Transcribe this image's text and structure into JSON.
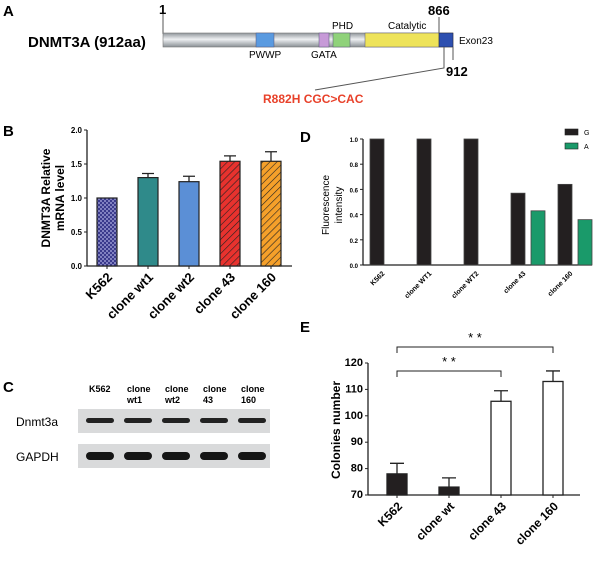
{
  "panel_labels": {
    "a": "A",
    "b": "B",
    "c": "C",
    "d": "D",
    "e": "E"
  },
  "panel_a": {
    "protein": "DNMT3A (912aa)",
    "start": "1",
    "pos866": "866",
    "end": "912",
    "exon": "Exon23",
    "domains": {
      "pwwp": "PWWP",
      "gata": "GATA",
      "phd": "PHD",
      "catalytic": "Catalytic"
    },
    "mutation": "R882H CGC>CAC",
    "mutation_color": "#e8412a"
  },
  "panel_c": {
    "lanes": [
      [
        "K562",
        ""
      ],
      [
        "clone",
        "wt1"
      ],
      [
        "clone",
        "wt2"
      ],
      [
        "clone",
        "43"
      ],
      [
        "clone",
        "160"
      ]
    ],
    "rows": [
      "Dnmt3a",
      "GAPDH"
    ]
  },
  "chart_data": [
    {
      "id": "B",
      "type": "bar",
      "ylabel": [
        "DNMT3A Relative",
        "mRNA level"
      ],
      "ylim": [
        0,
        2
      ],
      "yticks": [
        "0.0",
        "0.5",
        "1.0",
        "1.5",
        "2.0"
      ],
      "categories": [
        "K562",
        "clone wt1",
        "clone wt2",
        "clone 43",
        "clone 160"
      ],
      "values": [
        1.0,
        1.3,
        1.24,
        1.54,
        1.54
      ],
      "errors": [
        0,
        0.06,
        0.08,
        0.08,
        0.14
      ],
      "colors": [
        "#3a3a8c",
        "#2f8a8a",
        "#5b8fd6",
        "#e8322e",
        "#f5a02a"
      ]
    },
    {
      "id": "D",
      "type": "bar",
      "ylabel": [
        "Fluorescence",
        "intensity"
      ],
      "ylim": [
        0,
        1
      ],
      "yticks": [
        "0.0",
        "0.2",
        "0.4",
        "0.6",
        "0.8",
        "1.0"
      ],
      "categories": [
        "K562",
        "clone WT1",
        "clone WT2",
        "clone 43",
        "clone 160"
      ],
      "series": [
        {
          "name": "G",
          "values": [
            1.0,
            1.0,
            1.0,
            0.57,
            0.64
          ],
          "color": "#231f20"
        },
        {
          "name": "A",
          "values": [
            0,
            0,
            0,
            0.43,
            0.36
          ],
          "color": "#1a9a6a"
        }
      ],
      "legend": "top-right"
    },
    {
      "id": "E",
      "type": "bar",
      "ylabel": "Colonies number",
      "ylim": [
        70,
        120
      ],
      "yticks": [
        "70",
        "80",
        "90",
        "100",
        "110",
        "120"
      ],
      "categories": [
        "K562",
        "clone wt",
        "clone 43",
        "clone 160"
      ],
      "values": [
        78,
        73,
        105.5,
        113
      ],
      "errors": [
        4,
        3.5,
        4,
        4
      ],
      "fills": [
        "#231f20",
        "#231f20",
        "#ffffff",
        "#ffffff"
      ],
      "annotations": [
        {
          "from": "K562",
          "to": "clone 43",
          "label": "* *"
        },
        {
          "from": "K562",
          "to": "clone 160",
          "label": "* *"
        }
      ]
    }
  ]
}
